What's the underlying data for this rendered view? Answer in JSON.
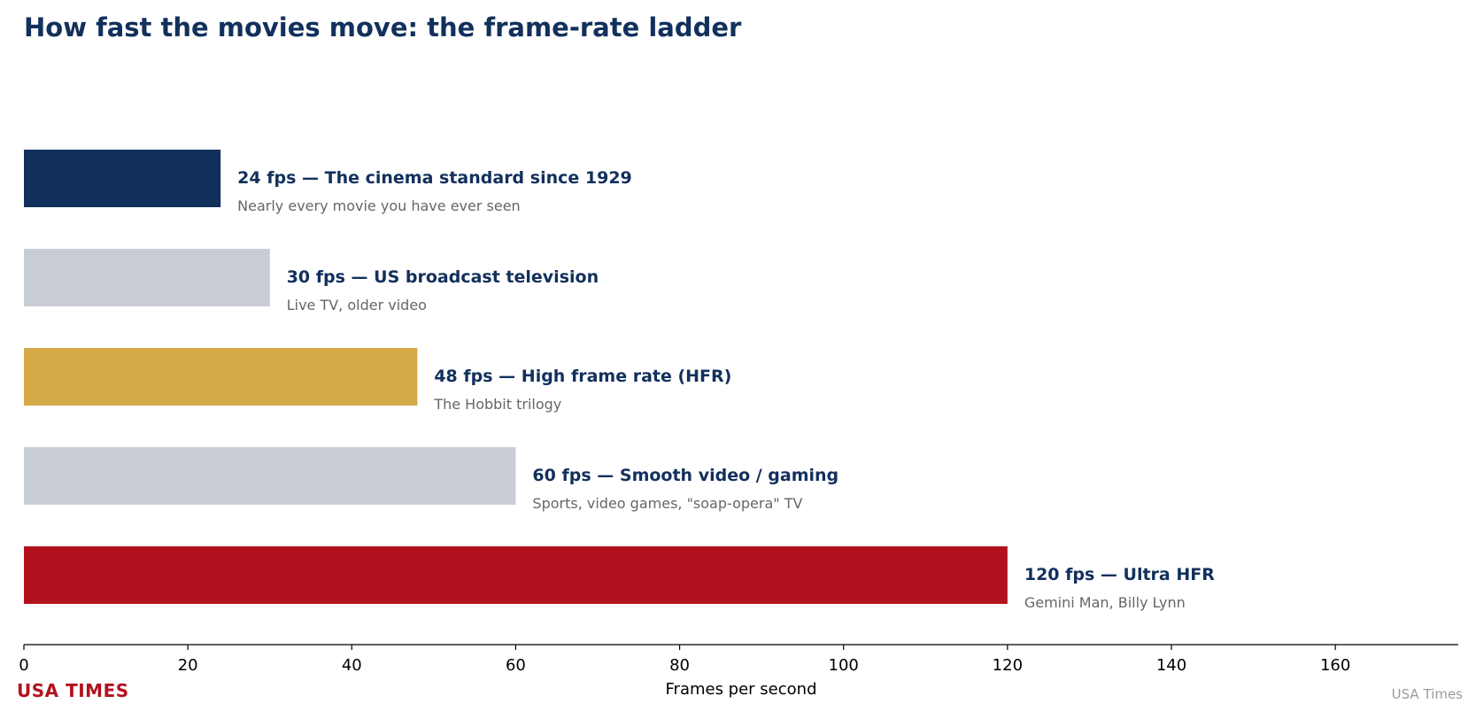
{
  "brand": {
    "logo": "USA TIMES",
    "credit": "USA Times"
  },
  "colors": {
    "title": "#12305c",
    "label": "#12305c",
    "sublabel": "#666666",
    "axis": "#000000",
    "brand": "#b2121e"
  },
  "chart_data": {
    "type": "bar",
    "orientation": "horizontal",
    "title": "How fast the movies move: the frame-rate ladder",
    "xlabel": "Frames per second",
    "ylabel": "",
    "xlim": [
      0,
      175
    ],
    "xticks": [
      0,
      20,
      40,
      60,
      80,
      100,
      120,
      140,
      160
    ],
    "grid": false,
    "legend": "none",
    "bars": [
      {
        "value": 24,
        "label": "24 fps — The cinema standard since 1929",
        "sublabel": "Nearly every movie you have ever seen",
        "color": "#12305c"
      },
      {
        "value": 30,
        "label": "30 fps — US broadcast television",
        "sublabel": "Live TV, older video",
        "color": "#c8ccd4"
      },
      {
        "value": 48,
        "label": "48 fps — High frame rate (HFR)",
        "sublabel": "The Hobbit trilogy",
        "color": "#d4a947"
      },
      {
        "value": 60,
        "label": "60 fps — Smooth video / gaming",
        "sublabel": "Sports, video games, \"soap-opera\" TV",
        "color": "#c8ccd4"
      },
      {
        "value": 120,
        "label": "120 fps — Ultra HFR",
        "sublabel": "Gemini Man, Billy Lynn",
        "color": "#b2121e"
      }
    ]
  }
}
